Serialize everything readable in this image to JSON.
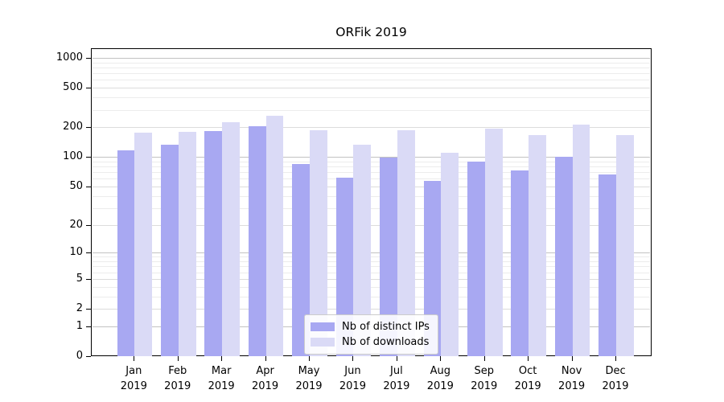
{
  "chart_data": {
    "type": "bar",
    "title": "ORFik 2019",
    "categories": [
      "Jan",
      "Feb",
      "Mar",
      "Apr",
      "May",
      "Jun",
      "Jul",
      "Aug",
      "Sep",
      "Oct",
      "Nov",
      "Dec"
    ],
    "xtick_year": "2019",
    "series": [
      {
        "name": "Nb of distinct IPs",
        "color": "#a8a8f2",
        "values": [
          116,
          133,
          183,
          204,
          84,
          62,
          98,
          57,
          90,
          73,
          100,
          66
        ]
      },
      {
        "name": "Nb of downloads",
        "color": "#dadaf6",
        "values": [
          176,
          180,
          226,
          260,
          185,
          134,
          186,
          110,
          192,
          168,
          213,
          165
        ]
      }
    ],
    "yticks": [
      0,
      1,
      2,
      5,
      10,
      20,
      50,
      100,
      200,
      500,
      1000
    ],
    "ytick_labels": [
      "0",
      "1",
      "2",
      "5",
      "10",
      "20",
      "50",
      "100",
      "200",
      "500",
      "1000"
    ],
    "yscale": "log1p",
    "ylim": [
      0,
      1400
    ],
    "grid": "both",
    "legend_position": "inside-bottom-center"
  },
  "colors": {
    "grid_major": "#c2c2c2",
    "grid_labeled": "#dcdcdc",
    "grid_minor": "#ececec",
    "axis": "#000000",
    "background": "#ffffff"
  }
}
